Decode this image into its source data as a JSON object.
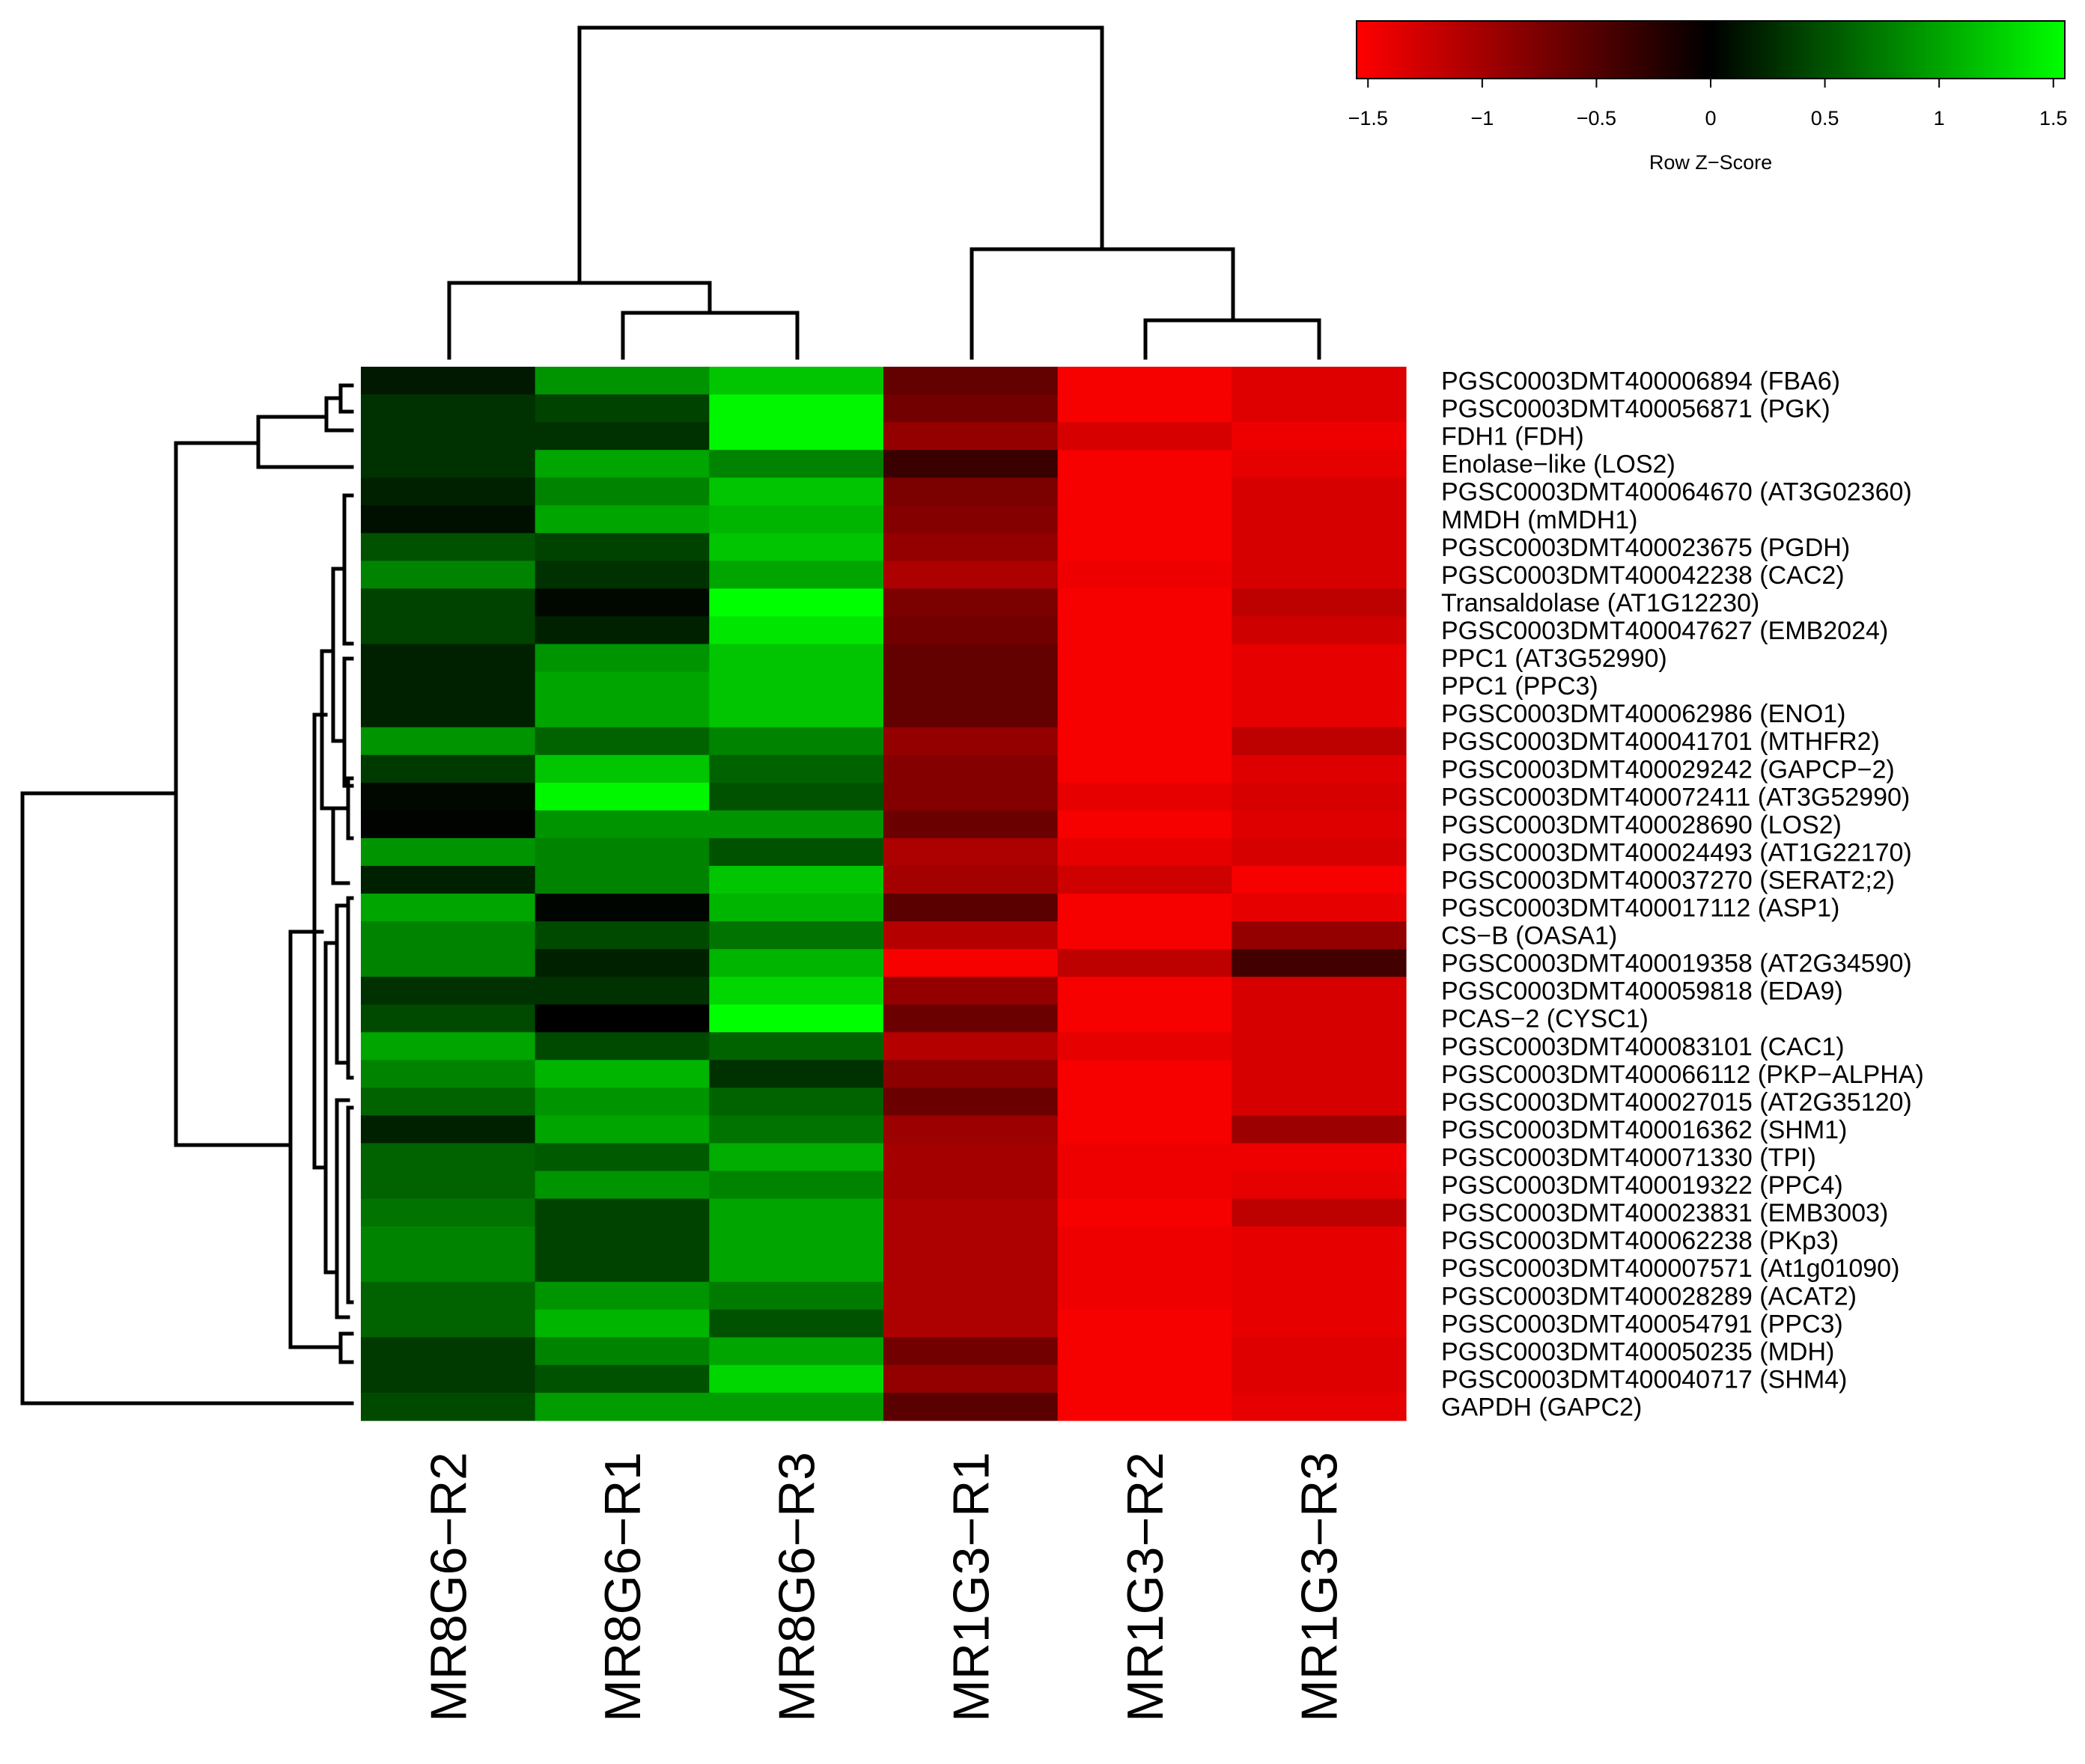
{
  "chart_data": {
    "type": "heatmap",
    "columns": [
      "MR8G6−R2",
      "MR8G6−R1",
      "MR8G6−R3",
      "MR1G3−R1",
      "MR1G3−R2",
      "MR1G3−R3"
    ],
    "rows": [
      "PGSC0003DMT400006894 (FBA6)",
      "PGSC0003DMT400056871 (PGK)",
      "FDH1 (FDH)",
      "Enolase−like (LOS2)",
      "PGSC0003DMT400064670 (AT3G02360)",
      "MMDH (mMDH1)",
      "PGSC0003DMT400023675 (PGDH)",
      "PGSC0003DMT400042238 (CAC2)",
      "Transaldolase (AT1G12230)",
      "PGSC0003DMT400047627 (EMB2024)",
      "PPC1 (AT3G52990)",
      "PPC1 (PPC3)",
      "PGSC0003DMT400062986 (ENO1)",
      "PGSC0003DMT400041701 (MTHFR2)",
      "PGSC0003DMT400029242 (GAPCP−2)",
      "PGSC0003DMT400072411 (AT3G52990)",
      "PGSC0003DMT400028690 (LOS2)",
      "PGSC0003DMT400024493 (AT1G22170)",
      "PGSC0003DMT400037270 (SERAT2;2)",
      "PGSC0003DMT400017112 (ASP1)",
      "CS−B (OASA1)",
      "PGSC0003DMT400019358 (AT2G34590)",
      "PGSC0003DMT400059818 (EDA9)",
      "PCAS−2 (CYSC1)",
      "PGSC0003DMT400083101 (CAC1)",
      "PGSC0003DMT400066112 (PKP−ALPHA)",
      "PGSC0003DMT400027015 (AT2G35120)",
      "PGSC0003DMT400016362 (SHM1)",
      "PGSC0003DMT400071330 (TPI)",
      "PGSC0003DMT400019322 (PPC4)",
      "PGSC0003DMT400023831 (EMB3003)",
      "PGSC0003DMT400062238 (PKp3)",
      "PGSC0003DMT400007571 (At1g01090)",
      "PGSC0003DMT400028289 (ACAT2)",
      "PGSC0003DMT400054791 (PPC3)",
      "PGSC0003DMT400050235 (MDH)",
      "PGSC0003DMT400040717 (SHM4)",
      "GAPDH (GAPC2)"
    ],
    "values": [
      [
        0.15,
        0.9,
        1.2,
        -0.6,
        -1.5,
        -1.35
      ],
      [
        0.3,
        0.4,
        1.5,
        -0.7,
        -1.5,
        -1.35
      ],
      [
        0.3,
        0.3,
        1.5,
        -0.9,
        -1.3,
        -1.45
      ],
      [
        0.3,
        1.0,
        0.8,
        -0.35,
        -1.5,
        -1.4
      ],
      [
        0.2,
        0.8,
        1.2,
        -0.75,
        -1.5,
        -1.3
      ],
      [
        0.1,
        1.0,
        1.1,
        -0.8,
        -1.5,
        -1.3
      ],
      [
        0.5,
        0.4,
        1.2,
        -0.9,
        -1.5,
        -1.3
      ],
      [
        0.8,
        0.3,
        1.0,
        -1.05,
        -1.45,
        -1.3
      ],
      [
        0.4,
        0.05,
        1.6,
        -0.75,
        -1.5,
        -1.15
      ],
      [
        0.4,
        0.2,
        1.4,
        -0.7,
        -1.5,
        -1.25
      ],
      [
        0.2,
        0.9,
        1.2,
        -0.6,
        -1.5,
        -1.4
      ],
      [
        0.2,
        1.0,
        1.2,
        -0.6,
        -1.5,
        -1.4
      ],
      [
        0.2,
        1.0,
        1.2,
        -0.6,
        -1.5,
        -1.4
      ],
      [
        0.9,
        0.6,
        0.8,
        -0.9,
        -1.5,
        -1.15
      ],
      [
        0.35,
        1.2,
        0.6,
        -0.8,
        -1.5,
        -1.35
      ],
      [
        0.05,
        1.5,
        0.5,
        -0.8,
        -1.4,
        -1.3
      ],
      [
        0.02,
        0.9,
        0.9,
        -0.65,
        -1.5,
        -1.35
      ],
      [
        0.9,
        0.8,
        0.5,
        -1.05,
        -1.4,
        -1.3
      ],
      [
        0.2,
        0.8,
        1.2,
        -1.0,
        -1.25,
        -1.5
      ],
      [
        1.0,
        0.03,
        1.1,
        -0.55,
        -1.5,
        -1.4
      ],
      [
        0.8,
        0.45,
        0.7,
        -1.1,
        -1.5,
        -0.9
      ],
      [
        0.8,
        0.2,
        1.1,
        -1.5,
        -1.15,
        -0.4
      ],
      [
        0.3,
        0.3,
        1.3,
        -0.9,
        -1.5,
        -1.3
      ],
      [
        0.45,
        0.0,
        1.6,
        -0.65,
        -1.5,
        -1.3
      ],
      [
        1.0,
        0.45,
        0.6,
        -1.1,
        -1.4,
        -1.3
      ],
      [
        0.8,
        1.1,
        0.3,
        -0.85,
        -1.5,
        -1.3
      ],
      [
        0.6,
        0.9,
        0.6,
        -0.65,
        -1.5,
        -1.3
      ],
      [
        0.2,
        1.0,
        0.7,
        -0.95,
        -1.5,
        -0.95
      ],
      [
        0.6,
        0.55,
        1.05,
        -1.0,
        -1.45,
        -1.45
      ],
      [
        0.6,
        0.9,
        0.8,
        -1.0,
        -1.45,
        -1.4
      ],
      [
        0.7,
        0.4,
        1.0,
        -1.05,
        -1.5,
        -1.15
      ],
      [
        0.8,
        0.4,
        1.0,
        -1.05,
        -1.45,
        -1.4
      ],
      [
        0.8,
        0.4,
        1.0,
        -1.05,
        -1.45,
        -1.4
      ],
      [
        0.6,
        0.9,
        0.75,
        -1.05,
        -1.45,
        -1.4
      ],
      [
        0.6,
        1.1,
        0.5,
        -1.05,
        -1.5,
        -1.4
      ],
      [
        0.35,
        0.8,
        1.0,
        -0.7,
        -1.5,
        -1.35
      ],
      [
        0.35,
        0.5,
        1.3,
        -0.9,
        -1.5,
        -1.35
      ],
      [
        0.45,
        0.95,
        0.95,
        -0.55,
        -1.5,
        -1.4
      ]
    ],
    "color_key": {
      "title": "Row Z−Score",
      "ticks": [
        -1.5,
        -1,
        -0.5,
        0,
        0.5,
        1,
        1.5
      ],
      "tick_labels": [
        "−1.5",
        "−1",
        "−0.5",
        "0",
        "0.5",
        "1",
        "1.5"
      ],
      "range": [
        -1.55,
        1.55
      ],
      "low_color": "#ff0000",
      "mid_color": "#000000",
      "high_color": "#00ff00",
      "position": "top-right"
    },
    "column_dendrogram": true,
    "row_dendrogram": true
  }
}
